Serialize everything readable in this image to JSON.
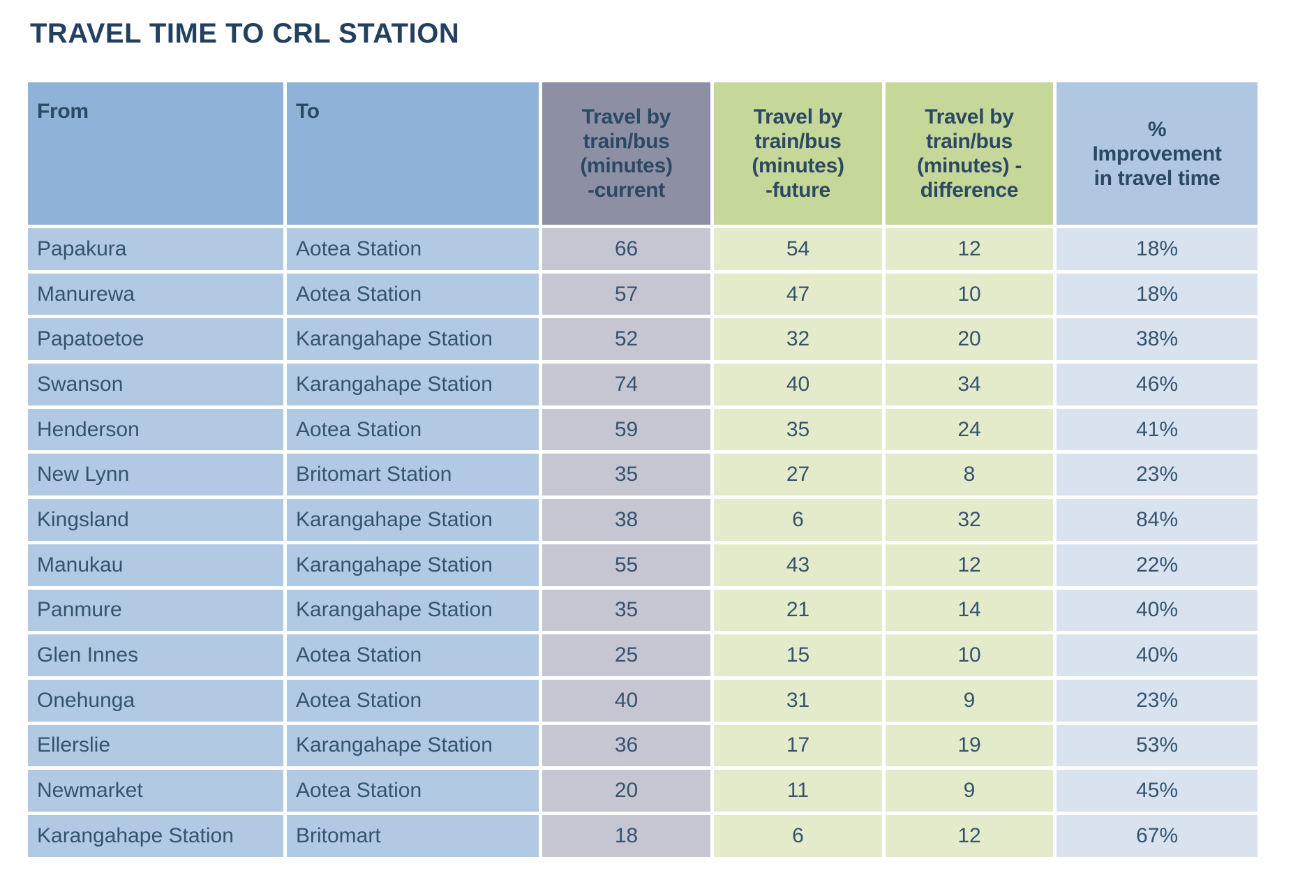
{
  "title": "TRAVEL TIME TO CRL STATION",
  "chart_data": {
    "type": "table",
    "title": "TRAVEL TIME TO CRL STATION",
    "columns": [
      {
        "key": "from",
        "label": "From"
      },
      {
        "key": "to",
        "label": "To"
      },
      {
        "key": "current",
        "label": "Travel by\ntrain/bus\n(minutes)\n-current"
      },
      {
        "key": "future",
        "label": "Travel by\ntrain/bus\n(minutes)\n-future"
      },
      {
        "key": "difference",
        "label": "Travel by\ntrain/bus\n(minutes) -\ndifference"
      },
      {
        "key": "improvement",
        "label": "%\nImprovement\nin travel time"
      }
    ],
    "rows": [
      {
        "from": "Papakura",
        "to": "Aotea Station",
        "current": 66,
        "future": 54,
        "difference": 12,
        "improvement": "18%"
      },
      {
        "from": "Manurewa",
        "to": "Aotea Station",
        "current": 57,
        "future": 47,
        "difference": 10,
        "improvement": "18%"
      },
      {
        "from": "Papatoetoe",
        "to": "Karangahape Station",
        "current": 52,
        "future": 32,
        "difference": 20,
        "improvement": "38%"
      },
      {
        "from": "Swanson",
        "to": "Karangahape Station",
        "current": 74,
        "future": 40,
        "difference": 34,
        "improvement": "46%"
      },
      {
        "from": "Henderson",
        "to": "Aotea Station",
        "current": 59,
        "future": 35,
        "difference": 24,
        "improvement": "41%"
      },
      {
        "from": "New Lynn",
        "to": "Britomart Station",
        "current": 35,
        "future": 27,
        "difference": 8,
        "improvement": "23%"
      },
      {
        "from": "Kingsland",
        "to": "Karangahape Station",
        "current": 38,
        "future": 6,
        "difference": 32,
        "improvement": "84%"
      },
      {
        "from": "Manukau",
        "to": "Karangahape Station",
        "current": 55,
        "future": 43,
        "difference": 12,
        "improvement": "22%"
      },
      {
        "from": "Panmure",
        "to": "Karangahape Station",
        "current": 35,
        "future": 21,
        "difference": 14,
        "improvement": "40%"
      },
      {
        "from": "Glen Innes",
        "to": "Aotea Station",
        "current": 25,
        "future": 15,
        "difference": 10,
        "improvement": "40%"
      },
      {
        "from": "Onehunga",
        "to": "Aotea Station",
        "current": 40,
        "future": 31,
        "difference": 9,
        "improvement": "23%"
      },
      {
        "from": "Ellerslie",
        "to": "Karangahape Station",
        "current": 36,
        "future": 17,
        "difference": 19,
        "improvement": "53%"
      },
      {
        "from": "Newmarket",
        "to": "Aotea Station",
        "current": 20,
        "future": 11,
        "difference": 9,
        "improvement": "45%"
      },
      {
        "from": "Karangahape Station",
        "to": "Britomart",
        "current": 18,
        "future": 6,
        "difference": 12,
        "improvement": "67%"
      }
    ]
  },
  "colors": {
    "title_text": "#23405E",
    "header_text": "#2B4963",
    "body_text": "#35536F",
    "header_blue": "#8FB3D8",
    "header_gray": "#8D90A4",
    "header_green": "#C6D79A",
    "header_pale_blue": "#B1C6E1",
    "body_blue": "#B1C9E2",
    "body_gray": "#C5C6D1",
    "body_green": "#E4EBCB",
    "body_pale_blue": "#D9E3EF"
  }
}
